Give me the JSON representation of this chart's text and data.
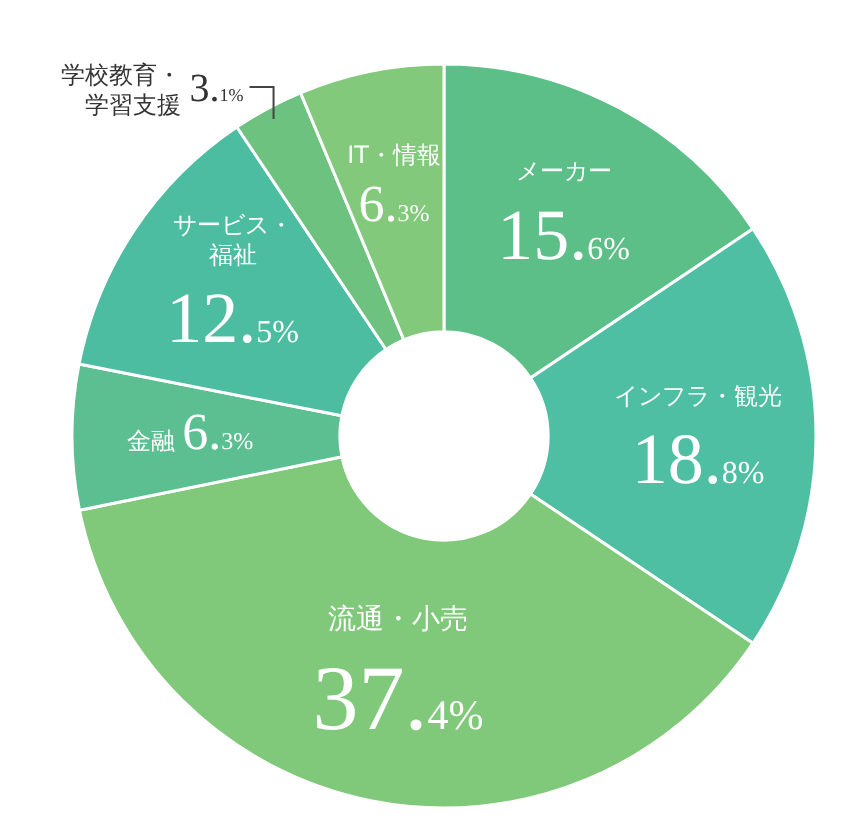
{
  "chart_data": {
    "type": "donut",
    "categories": [
      "メーカー",
      "インフラ・観光",
      "流通・小売",
      "金融",
      "サービス・福祉",
      "学校教育・学習支援",
      "IT・情報"
    ],
    "values": [
      15.6,
      18.8,
      37.4,
      6.3,
      12.5,
      3.1,
      6.3
    ],
    "value_labels": [
      "15.6%",
      "18.8%",
      "37.4%",
      "6.3%",
      "12.5%",
      "3.1%",
      "6.3%"
    ],
    "colors": [
      "#5dbf88",
      "#4fbfa4",
      "#80c97a",
      "#5cbf92",
      "#4dbda2",
      "#6cc27e",
      "#82c97c"
    ]
  }
}
